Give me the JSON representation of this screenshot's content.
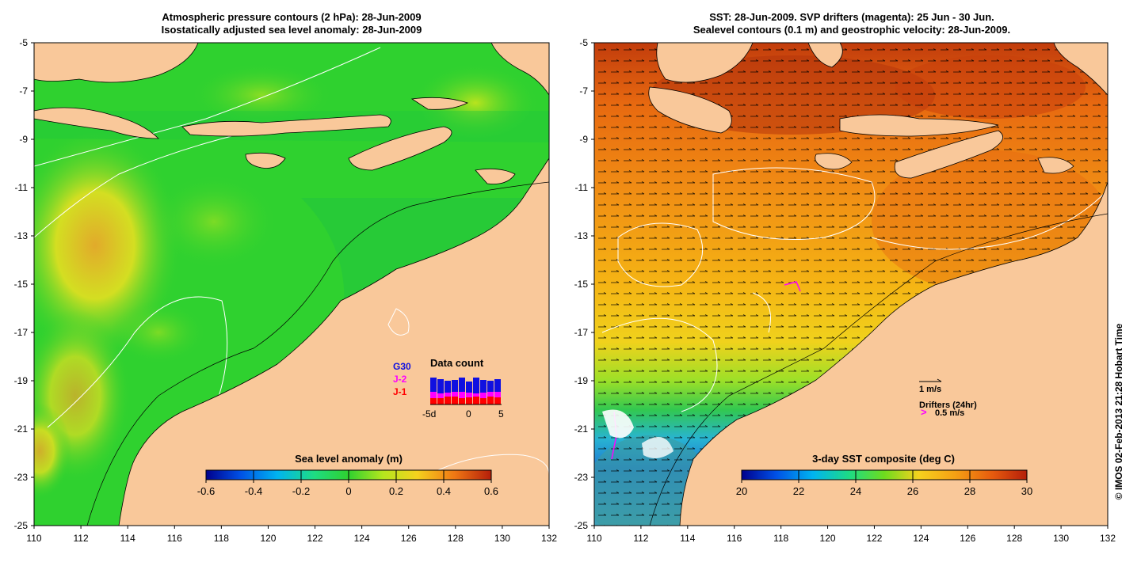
{
  "left_panel": {
    "title_line1": "Atmospheric pressure contours (2 hPa): 28-Jun-2009",
    "title_line2": "Isostatically adjusted sea level anomaly: 28-Jun-2009",
    "colorbar_label": "Sea level anomaly (m)",
    "colorbar_ticks": [
      "-0.6",
      "-0.4",
      "-0.2",
      "0",
      "0.2",
      "0.4",
      "0.6"
    ],
    "legend": {
      "title": "Data count",
      "items": [
        {
          "label": "G30",
          "color": "#1010e0"
        },
        {
          "label": "J-2",
          "color": "#ff00ff"
        },
        {
          "label": "J-1",
          "color": "#ff0000"
        }
      ],
      "xticks": [
        "-5d",
        "0",
        "5"
      ]
    }
  },
  "right_panel": {
    "title_line1": "SST: 28-Jun-2009. SVP drifters (magenta): 25 Jun - 30 Jun.",
    "title_line2": "Sealevel contours (0.1 m) and geostrophic velocity: 28-Jun-2009.",
    "colorbar_label": "3-day SST composite (deg C)",
    "colorbar_ticks": [
      "20",
      "22",
      "24",
      "26",
      "28",
      "30"
    ],
    "velocity_scale": "1 m/s",
    "drifters_label": "Drifters (24hr)",
    "drifter_scale": "0.5 m/s"
  },
  "axes": {
    "lat_ticks": [
      "-5",
      "-7",
      "-9",
      "-11",
      "-13",
      "-15",
      "-17",
      "-19",
      "-21",
      "-23",
      "-25"
    ],
    "lon_ticks": [
      "110",
      "112",
      "114",
      "116",
      "118",
      "120",
      "122",
      "124",
      "126",
      "128",
      "130",
      "132"
    ]
  },
  "credit": "© IMOS 02-Feb-2013 21:28 Hobart Time",
  "colors": {
    "land": "#f9c89a",
    "sla_ocean": "#2fd12f",
    "sst_warm": "#e0660c",
    "sst_mid": "#f5b414",
    "sst_cool": "#3cc83c"
  }
}
